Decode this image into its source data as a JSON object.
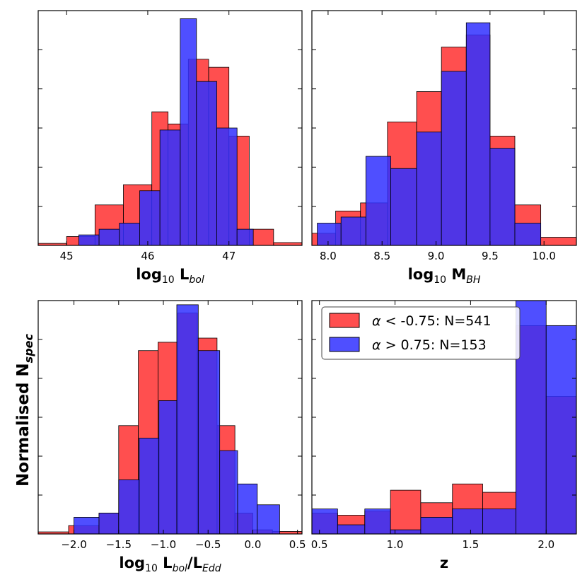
{
  "figure_ylabel": {
    "main": "Normalised N",
    "sub": "spec"
  },
  "legend": [
    {
      "symbol": "α",
      "text": "< -0.75: N=541",
      "color": "#ff0000"
    },
    {
      "symbol": "α",
      "text": ">  0.75: N=153",
      "color": "#0000ff"
    }
  ],
  "colors": {
    "red_fill": "#ff3030",
    "blue_fill": "#3030ff",
    "edge": "#000000"
  },
  "chart_data": [
    {
      "type": "histogram",
      "xlabel": {
        "main": "log",
        "sub10": "10",
        "rest": " L",
        "italic": "bol",
        "tail": ""
      },
      "xlim": [
        44.65,
        47.9
      ],
      "ylim": [
        0,
        0.58
      ],
      "xticks": [
        45,
        46,
        47
      ],
      "xtick_labels": [
        "45",
        "46",
        "47"
      ],
      "series": [
        {
          "name": "alpha < -0.75",
          "color": "red",
          "edges": [
            44.65,
            45.0,
            45.35,
            45.7,
            46.05,
            46.25,
            46.5,
            46.75,
            47.0,
            47.25,
            47.55,
            47.9
          ],
          "values": [
            0.005,
            0.022,
            0.1,
            0.15,
            0.33,
            0.3,
            0.46,
            0.44,
            0.27,
            0.04,
            0.007
          ]
        },
        {
          "name": "alpha > 0.75",
          "color": "blue",
          "edges": [
            45.15,
            45.4,
            45.65,
            45.9,
            46.15,
            46.4,
            46.6,
            46.85,
            47.1,
            47.3
          ],
          "values": [
            0.026,
            0.04,
            0.055,
            0.135,
            0.285,
            0.56,
            0.405,
            0.29,
            0.04
          ]
        }
      ]
    },
    {
      "type": "histogram",
      "xlabel": {
        "main": "log",
        "sub10": "10",
        "rest": " M",
        "italic": "BH",
        "tail": ""
      },
      "xlim": [
        7.85,
        10.3
      ],
      "ylim": [
        0,
        0.58
      ],
      "xticks": [
        8.0,
        8.5,
        9.0,
        9.5,
        10.0
      ],
      "xtick_labels": [
        "8.0",
        "8.5",
        "9.0",
        "9.5",
        "10.0"
      ],
      "series": [
        {
          "name": "alpha < -0.75",
          "color": "red",
          "edges": [
            7.85,
            8.07,
            8.3,
            8.55,
            8.82,
            9.05,
            9.28,
            9.5,
            9.73,
            9.97,
            10.3
          ],
          "values": [
            0.03,
            0.085,
            0.105,
            0.305,
            0.38,
            0.49,
            0.52,
            0.27,
            0.1,
            0.02
          ]
        },
        {
          "name": "alpha > 0.75",
          "color": "blue",
          "edges": [
            7.9,
            8.12,
            8.35,
            8.58,
            8.82,
            9.05,
            9.28,
            9.5,
            9.73,
            9.97
          ],
          "values": [
            0.055,
            0.07,
            0.22,
            0.19,
            0.28,
            0.43,
            0.55,
            0.24,
            0.055
          ]
        }
      ]
    },
    {
      "type": "histogram",
      "xlabel": {
        "main": "log",
        "sub10": "10",
        "rest": " L",
        "italic": "bol",
        "tail": "/L",
        "italic2": "Edd"
      },
      "xlim": [
        -2.4,
        0.55
      ],
      "ylim": [
        0,
        0.56
      ],
      "xticks": [
        -2.0,
        -1.5,
        -1.0,
        -0.5,
        0.0,
        0.5
      ],
      "xtick_labels": [
        "−2.0",
        "−1.5",
        "−1.0",
        "−0.5",
        "0.0",
        "0.5"
      ],
      "series": [
        {
          "name": "alpha < -0.75",
          "color": "red",
          "edges": [
            -2.4,
            -2.06,
            -1.72,
            -1.5,
            -1.28,
            -1.06,
            -0.84,
            -0.62,
            -0.4,
            -0.2,
            0.0,
            0.22,
            0.55
          ],
          "values": [
            0.005,
            0.02,
            0.05,
            0.26,
            0.44,
            0.46,
            0.53,
            0.47,
            0.26,
            0.05,
            0.01,
            0.006
          ]
        },
        {
          "name": "alpha > 0.75",
          "color": "blue",
          "edges": [
            -2.0,
            -1.72,
            -1.5,
            -1.27,
            -1.05,
            -0.85,
            -0.61,
            -0.37,
            -0.17,
            0.05,
            0.3
          ],
          "values": [
            0.04,
            0.05,
            0.13,
            0.23,
            0.32,
            0.55,
            0.44,
            0.2,
            0.12,
            0.07
          ]
        }
      ]
    },
    {
      "type": "histogram",
      "xlabel": {
        "main": "z",
        "sub10": "",
        "rest": "",
        "italic": "",
        "tail": ""
      },
      "xlim": [
        0.45,
        2.2
      ],
      "ylim": [
        0,
        0.56
      ],
      "xticks": [
        0.5,
        1.0,
        1.5,
        2.0
      ],
      "xtick_labels": [
        "0.5",
        "1.0",
        "1.5",
        "2.0"
      ],
      "series": [
        {
          "name": "alpha < -0.75",
          "color": "red",
          "edges": [
            0.45,
            0.62,
            0.8,
            0.97,
            1.17,
            1.38,
            1.58,
            1.8,
            2.0,
            2.2
          ],
          "values": [
            0.05,
            0.045,
            0.055,
            0.105,
            0.075,
            0.12,
            0.1,
            0.5,
            0.33
          ]
        },
        {
          "name": "alpha > 0.75",
          "color": "blue",
          "edges": [
            0.45,
            0.62,
            0.8,
            0.97,
            1.17,
            1.38,
            1.58,
            1.8,
            2.0,
            2.2
          ],
          "values": [
            0.06,
            0.022,
            0.06,
            0.01,
            0.04,
            0.06,
            0.06,
            0.56,
            0.5
          ]
        }
      ]
    }
  ]
}
